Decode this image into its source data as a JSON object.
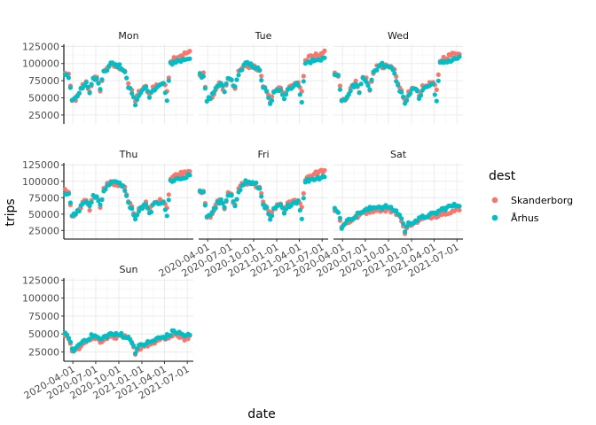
{
  "chart_data": {
    "type": "scatter",
    "xlabel": "date",
    "ylabel": "trips",
    "x_range": [
      "2020-02-25",
      "2021-07-25"
    ],
    "y_range": [
      12000,
      128000
    ],
    "x_ticks": [
      "2020-04-01",
      "2020-07-01",
      "2020-10-01",
      "2021-01-01",
      "2021-04-01",
      "2021-07-01"
    ],
    "y_ticks": [
      25000,
      50000,
      75000,
      100000,
      125000
    ],
    "y_tick_labels": [
      "25000",
      "50000",
      "75000",
      "100000",
      "125000"
    ],
    "legend": {
      "title": "dest",
      "position": "right",
      "entries": [
        {
          "name": "Skanderborg",
          "color": "#F8766D"
        },
        {
          "name": "Århus",
          "color": "#00BFC4"
        }
      ]
    },
    "facet_by": "weekday",
    "facets": [
      {
        "label": "Mon",
        "profile": "weekday"
      },
      {
        "label": "Tue",
        "profile": "weekday"
      },
      {
        "label": "Wed",
        "profile": "weekday"
      },
      {
        "label": "Thu",
        "profile": "weekday"
      },
      {
        "label": "Fri",
        "profile": "weekday"
      },
      {
        "label": "Sat",
        "profile": "saturday"
      },
      {
        "label": "Sun",
        "profile": "sunday"
      }
    ],
    "approx_weekly_trips": {
      "date_offsets_days_from_2020-03-01": [
        0,
        14,
        28,
        42,
        56,
        70,
        84,
        98,
        112,
        126,
        140,
        154,
        168,
        182,
        196,
        210,
        224,
        238,
        252,
        266,
        280,
        294,
        308,
        322,
        336,
        350,
        364,
        378,
        392,
        406,
        420,
        434,
        448,
        462,
        476,
        490
      ],
      "weekday": {
        "Skanderborg": [
          85000,
          84000,
          45000,
          48000,
          55000,
          68000,
          72000,
          58000,
          80000,
          78000,
          62000,
          88000,
          95000,
          97000,
          96000,
          95000,
          93000,
          90000,
          68000,
          60000,
          45000,
          58000,
          62000,
          66000,
          55000,
          65000,
          68000,
          70000,
          72000,
          60000,
          104000,
          108000,
          110000,
          112000,
          114000,
          116000
        ],
        "Århus": [
          83000,
          82000,
          47000,
          50000,
          57000,
          66000,
          70000,
          60000,
          78000,
          76000,
          64000,
          86000,
          92000,
          100000,
          98000,
          97000,
          95000,
          88000,
          66000,
          58000,
          40000,
          56000,
          60000,
          64000,
          50000,
          62000,
          66000,
          68000,
          70000,
          45000,
          100000,
          102000,
          104000,
          104000,
          106000,
          108000
        ]
      },
      "saturday": {
        "Skanderborg": [
          55000,
          52000,
          32000,
          35000,
          38000,
          42000,
          45000,
          48000,
          52000,
          53000,
          55000,
          56000,
          58000,
          57000,
          56000,
          58000,
          55000,
          53000,
          50000,
          42000,
          20000,
          33000,
          36000,
          38000,
          40000,
          42000,
          44000,
          45000,
          48000,
          48000,
          50000,
          52000,
          53000,
          54000,
          55000,
          56000
        ],
        "Århus": [
          58000,
          55000,
          30000,
          38000,
          40000,
          45000,
          47000,
          52000,
          54000,
          56000,
          58000,
          60000,
          62000,
          61000,
          60000,
          62000,
          58000,
          56000,
          52000,
          44000,
          25000,
          35000,
          38000,
          40000,
          42000,
          45000,
          47000,
          48000,
          50000,
          52000,
          56000,
          58000,
          60000,
          62000,
          63000,
          64000
        ]
      },
      "sunday": {
        "Skanderborg": [
          50000,
          45000,
          25000,
          28000,
          32000,
          38000,
          41000,
          42000,
          45000,
          44000,
          40000,
          43000,
          46000,
          48000,
          47000,
          46000,
          48000,
          45000,
          42000,
          38000,
          20000,
          30000,
          33000,
          35000,
          36000,
          38000,
          40000,
          41000,
          43000,
          44000,
          46000,
          47000,
          48000,
          46000,
          44000,
          45000
        ],
        "Århus": [
          49000,
          47000,
          27000,
          30000,
          35000,
          40000,
          43000,
          45000,
          48000,
          46000,
          42000,
          45000,
          48000,
          50000,
          49000,
          48000,
          50000,
          47000,
          44000,
          40000,
          26000,
          32000,
          35000,
          37000,
          38000,
          40000,
          43000,
          44000,
          46000,
          47000,
          50000,
          54000,
          52000,
          50000,
          48000,
          48000
        ]
      }
    }
  }
}
